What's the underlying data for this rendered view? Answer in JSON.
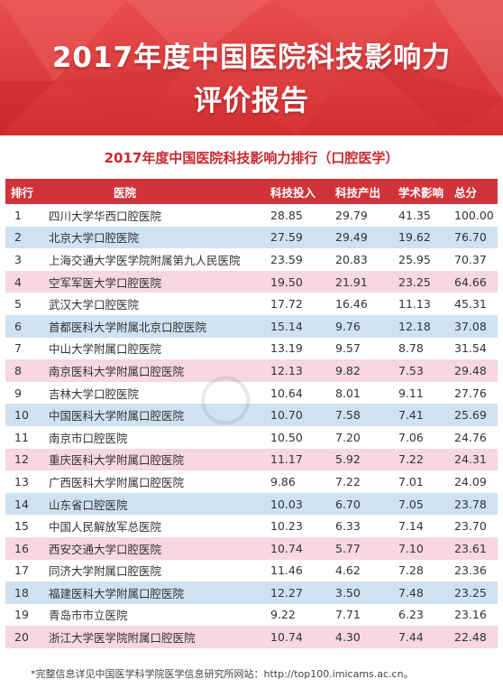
{
  "banner": {
    "title_line1": "2017年度中国医院科技影响力",
    "title_line2": "评价报告"
  },
  "subtitle": "2017年度中国医院科技影响力排行（口腔医学）",
  "table": {
    "headers": {
      "rank": "排行",
      "hospital": "医院",
      "investment": "科技投入",
      "output": "科技产出",
      "academic": "学术影响",
      "total": "总分"
    },
    "rows": [
      {
        "rank": "1",
        "name": "四川大学华西口腔医院",
        "inv": "28.85",
        "out": "29.79",
        "aca": "41.35",
        "tot": "100.00"
      },
      {
        "rank": "2",
        "name": "北京大学口腔医院",
        "inv": "27.59",
        "out": "29.49",
        "aca": "19.62",
        "tot": "76.70"
      },
      {
        "rank": "3",
        "name": "上海交通大学医学院附属第九人民医院",
        "inv": "23.59",
        "out": "20.83",
        "aca": "25.95",
        "tot": "70.37"
      },
      {
        "rank": "4",
        "name": "空军军医大学口腔医院",
        "inv": "19.50",
        "out": "21.91",
        "aca": "23.25",
        "tot": "64.66"
      },
      {
        "rank": "5",
        "name": "武汉大学口腔医院",
        "inv": "17.72",
        "out": "16.46",
        "aca": "11.13",
        "tot": "45.31"
      },
      {
        "rank": "6",
        "name": "首都医科大学附属北京口腔医院",
        "inv": "15.14",
        "out": "9.76",
        "aca": "12.18",
        "tot": "37.08"
      },
      {
        "rank": "7",
        "name": "中山大学附属口腔医院",
        "inv": "13.19",
        "out": "9.57",
        "aca": "8.78",
        "tot": "31.54"
      },
      {
        "rank": "8",
        "name": "南京医科大学附属口腔医院",
        "inv": "12.13",
        "out": "9.82",
        "aca": "7.53",
        "tot": "29.48"
      },
      {
        "rank": "9",
        "name": "吉林大学口腔医院",
        "inv": "10.64",
        "out": "8.01",
        "aca": "9.11",
        "tot": "27.76"
      },
      {
        "rank": "10",
        "name": "中国医科大学附属口腔医院",
        "inv": "10.70",
        "out": "7.58",
        "aca": "7.41",
        "tot": "25.69"
      },
      {
        "rank": "11",
        "name": "南京市口腔医院",
        "inv": "10.50",
        "out": "7.20",
        "aca": "7.06",
        "tot": "24.76"
      },
      {
        "rank": "12",
        "name": "重庆医科大学附属口腔医院",
        "inv": "11.17",
        "out": "5.92",
        "aca": "7.22",
        "tot": "24.31"
      },
      {
        "rank": "13",
        "name": "广西医科大学附属口腔医院",
        "inv": "9.86",
        "out": "7.22",
        "aca": "7.01",
        "tot": "24.09"
      },
      {
        "rank": "14",
        "name": "山东省口腔医院",
        "inv": "10.03",
        "out": "6.70",
        "aca": "7.05",
        "tot": "23.78"
      },
      {
        "rank": "15",
        "name": "中国人民解放军总医院",
        "inv": "10.23",
        "out": "6.33",
        "aca": "7.14",
        "tot": "23.70"
      },
      {
        "rank": "16",
        "name": "西安交通大学口腔医院",
        "inv": "10.74",
        "out": "5.77",
        "aca": "7.10",
        "tot": "23.61"
      },
      {
        "rank": "17",
        "name": "同济大学附属口腔医院",
        "inv": "11.46",
        "out": "4.62",
        "aca": "7.28",
        "tot": "23.36"
      },
      {
        "rank": "18",
        "name": "福建医科大学附属口腔医院",
        "inv": "12.27",
        "out": "3.50",
        "aca": "7.48",
        "tot": "23.25"
      },
      {
        "rank": "19",
        "name": "青岛市市立医院",
        "inv": "9.22",
        "out": "7.71",
        "aca": "6.23",
        "tot": "23.16"
      },
      {
        "rank": "20",
        "name": "浙江大学医学院附属口腔医院",
        "inv": "10.74",
        "out": "4.30",
        "aca": "7.44",
        "tot": "22.48"
      }
    ]
  },
  "footnote": "*完整信息详见中国医学科学院医学信息研究所网站：http://top100.imicams.ac.cn。",
  "colors": {
    "banner_red": "#d42e31",
    "header_red": "#d0343a",
    "subtitle_red": "#c8282d",
    "row_blue": "#cfe2f2",
    "row_pink": "#f7d7e0"
  }
}
